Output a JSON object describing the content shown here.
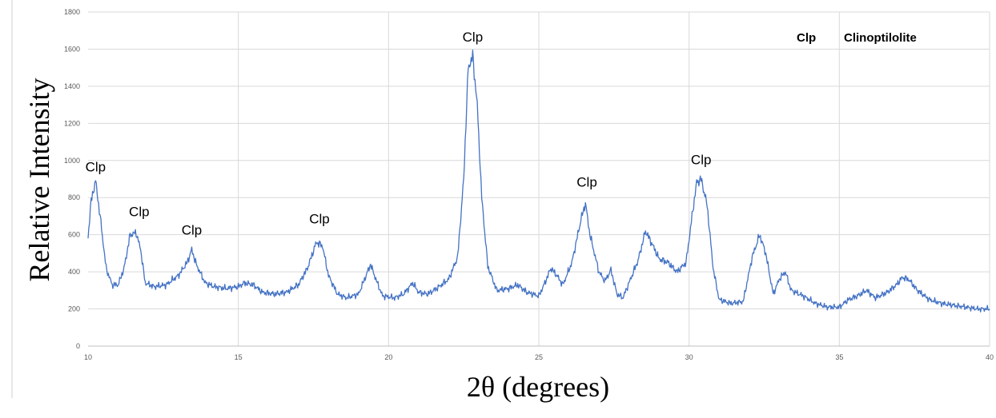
{
  "chart_data": {
    "type": "line",
    "title": "",
    "xlabel": "2θ (degrees)",
    "ylabel": "Relative Intensity",
    "xlim": [
      10,
      40
    ],
    "ylim": [
      0,
      1800
    ],
    "xticks": [
      10,
      15,
      20,
      25,
      30,
      35,
      40
    ],
    "yticks": [
      0,
      200,
      400,
      600,
      800,
      1000,
      1200,
      1400,
      1600,
      1800
    ],
    "grid": true,
    "line_color": "#4472c4",
    "series": [
      {
        "x": [
          10.0,
          10.1,
          10.25,
          10.4,
          10.6,
          10.8,
          11.0,
          11.2,
          11.4,
          11.6,
          11.75,
          11.9,
          12.2,
          12.6,
          13.0,
          13.3,
          13.45,
          13.6,
          13.9,
          14.2,
          14.6,
          15.0,
          15.2,
          15.5,
          15.8,
          16.2,
          16.6,
          17.0,
          17.3,
          17.6,
          17.8,
          18.0,
          18.3,
          18.6,
          19.0,
          19.2,
          19.4,
          19.6,
          19.8,
          20.2,
          20.5,
          20.8,
          21.0,
          21.3,
          21.6,
          22.0,
          22.3,
          22.5,
          22.65,
          22.8,
          22.95,
          23.1,
          23.3,
          23.6,
          24.0,
          24.3,
          24.6,
          25.0,
          25.2,
          25.4,
          25.6,
          25.8,
          26.1,
          26.4,
          26.55,
          26.7,
          27.0,
          27.2,
          27.4,
          27.6,
          27.8,
          28.0,
          28.3,
          28.55,
          28.8,
          29.0,
          29.3,
          29.6,
          29.9,
          30.1,
          30.25,
          30.4,
          30.6,
          30.8,
          31.0,
          31.4,
          31.8,
          32.1,
          32.35,
          32.55,
          32.8,
          33.0,
          33.2,
          33.4,
          33.8,
          34.2,
          34.6,
          35.0,
          35.3,
          35.6,
          35.9,
          36.2,
          36.6,
          36.9,
          37.1,
          37.3,
          37.6,
          38.0,
          38.4,
          38.8,
          39.2,
          39.6,
          40.0
        ],
        "values": [
          590,
          780,
          890,
          700,
          420,
          330,
          330,
          420,
          600,
          610,
          520,
          340,
          320,
          330,
          380,
          450,
          520,
          440,
          340,
          320,
          310,
          320,
          340,
          330,
          290,
          280,
          290,
          330,
          420,
          560,
          540,
          380,
          280,
          260,
          280,
          360,
          440,
          350,
          270,
          260,
          280,
          340,
          290,
          280,
          310,
          360,
          480,
          900,
          1500,
          1560,
          1300,
          800,
          430,
          300,
          310,
          330,
          290,
          270,
          340,
          420,
          380,
          330,
          450,
          680,
          770,
          600,
          400,
          350,
          410,
          280,
          260,
          340,
          460,
          620,
          540,
          470,
          450,
          400,
          450,
          700,
          880,
          900,
          760,
          420,
          250,
          230,
          240,
          480,
          600,
          500,
          280,
          360,
          400,
          300,
          270,
          230,
          210,
          210,
          250,
          270,
          300,
          260,
          290,
          330,
          370,
          360,
          300,
          250,
          230,
          220,
          210,
          200,
          200
        ]
      }
    ],
    "annotations": [
      {
        "text": "Clp",
        "x": 10.25,
        "y": 940
      },
      {
        "text": "Clp",
        "x": 11.7,
        "y": 700
      },
      {
        "text": "Clp",
        "x": 13.45,
        "y": 600
      },
      {
        "text": "Clp",
        "x": 17.7,
        "y": 660
      },
      {
        "text": "Clp",
        "x": 22.8,
        "y": 1640
      },
      {
        "text": "Clp",
        "x": 26.6,
        "y": 860
      },
      {
        "text": "Clp",
        "x": 30.4,
        "y": 980
      }
    ],
    "legend": {
      "abbrev": "Clp",
      "name": "Clinoptilolite",
      "position": "top-right"
    }
  }
}
